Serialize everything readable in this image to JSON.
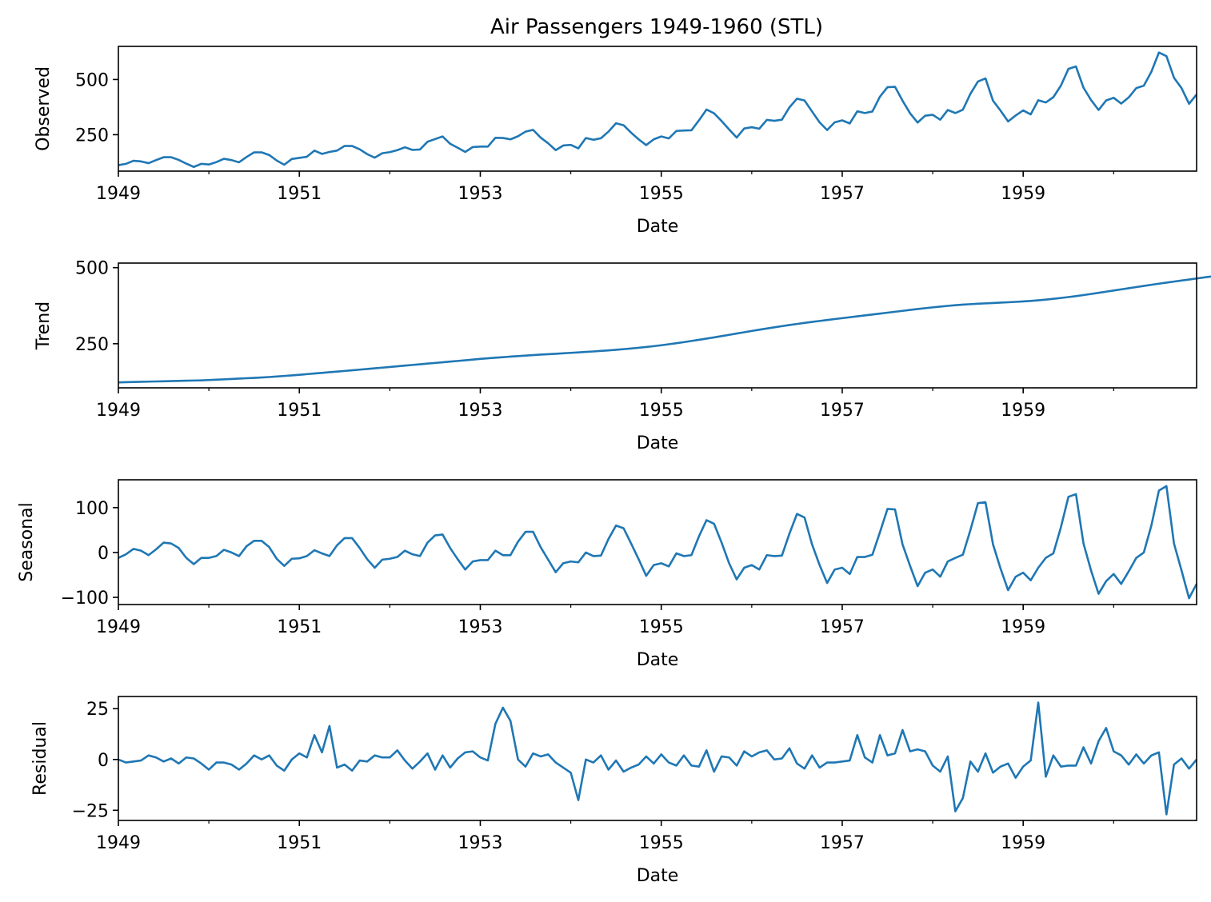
{
  "figure": {
    "title": "Air Passengers 1949-1960 (STL)"
  },
  "style": {
    "line_color": "#1f77b4",
    "axis_color": "#000000",
    "background": "#ffffff"
  },
  "chart_data": [
    {
      "type": "line",
      "ylabel": "Observed",
      "xlabel": "Date",
      "xlim": [
        "1949-01",
        "1960-12"
      ],
      "ylim": [
        85,
        650
      ],
      "yticks": [
        250,
        500
      ],
      "xticks": [
        "1949",
        "1951",
        "1953",
        "1955",
        "1957",
        "1959"
      ],
      "series": [
        {
          "values": [
            112,
            118,
            132,
            129,
            121,
            135,
            148,
            148,
            136,
            119,
            104,
            118,
            115,
            126,
            141,
            135,
            125,
            149,
            170,
            170,
            158,
            133,
            114,
            140,
            145,
            150,
            178,
            163,
            172,
            178,
            199,
            199,
            184,
            162,
            146,
            166,
            171,
            180,
            193,
            181,
            183,
            218,
            230,
            242,
            209,
            191,
            172,
            194,
            196,
            196,
            236,
            235,
            229,
            243,
            264,
            272,
            237,
            211,
            180,
            201,
            204,
            188,
            235,
            227,
            234,
            264,
            302,
            293,
            259,
            229,
            203,
            229,
            242,
            233,
            267,
            269,
            270,
            315,
            364,
            347,
            312,
            274,
            237,
            278,
            284,
            277,
            317,
            313,
            318,
            374,
            413,
            405,
            355,
            306,
            271,
            306,
            315,
            301,
            356,
            348,
            355,
            422,
            465,
            467,
            404,
            347,
            305,
            336,
            340,
            318,
            362,
            348,
            363,
            435,
            491,
            505,
            404,
            359,
            310,
            337,
            360,
            342,
            406,
            396,
            420,
            472,
            548,
            559,
            463,
            407,
            362,
            405,
            417,
            391,
            419,
            461,
            472,
            535,
            622,
            606,
            508,
            461,
            390,
            432
          ]
        }
      ]
    },
    {
      "type": "line",
      "ylabel": "Trend",
      "xlabel": "Date",
      "xlim": [
        "1949-01",
        "1960-12"
      ],
      "ylim": [
        105,
        515
      ],
      "yticks": [
        250,
        500
      ],
      "xticks": [
        "1949",
        "1951",
        "1953",
        "1955",
        "1957",
        "1959"
      ],
      "series": [
        {
          "values": [
            123,
            123.6,
            124.2,
            124.8,
            125.4,
            126,
            126.6,
            127.2,
            127.8,
            128.4,
            129,
            129.6,
            130.6,
            131.7,
            132.9,
            134.1,
            135.3,
            136.5,
            137.7,
            138.9,
            140.5,
            142.3,
            144.1,
            145.9,
            147.9,
            150,
            152.1,
            154.2,
            156.3,
            158.4,
            160.5,
            162.6,
            164.8,
            167,
            169.2,
            171.4,
            173.6,
            175.8,
            178,
            180.2,
            182.4,
            184.6,
            186.8,
            189,
            191.2,
            193.4,
            195.6,
            197.8,
            200,
            202,
            204,
            205.8,
            207.6,
            209.4,
            211,
            212.6,
            214.2,
            215.6,
            217,
            218.4,
            220,
            221.5,
            223,
            224.6,
            226.3,
            228.1,
            230,
            232.1,
            234.3,
            236.7,
            239.3,
            242,
            245,
            248.2,
            251.6,
            255.2,
            259,
            262.8,
            266.8,
            270.8,
            275,
            279.2,
            283.5,
            287.7,
            292,
            296,
            300,
            304,
            307.7,
            311.4,
            315,
            318.4,
            321.6,
            324.8,
            328,
            331,
            334,
            337,
            340,
            343,
            346,
            349,
            352,
            355,
            358,
            361,
            364,
            366.8,
            369.5,
            372,
            374.4,
            376.5,
            378.4,
            380,
            381.4,
            382.6,
            383.8,
            385,
            386.2,
            387.5,
            389,
            390.7,
            392.7,
            395,
            397.5,
            400.3,
            403.3,
            406.5,
            409.9,
            413.5,
            417.2,
            421,
            424.8,
            428.6,
            432.4,
            436.2,
            440,
            443.7,
            447.3,
            450.8,
            454.2,
            457.6,
            461,
            464.4,
            467.8,
            471.2,
            474.6,
            478,
            481.4,
            484.8,
            488.2,
            491.6,
            495,
            498.5
          ]
        }
      ]
    },
    {
      "type": "line",
      "ylabel": "Seasonal",
      "xlabel": "Date",
      "xlim": [
        "1949-01",
        "1960-12"
      ],
      "ylim": [
        -116,
        162
      ],
      "yticks": [
        -100,
        0,
        100
      ],
      "xticks": [
        "1949",
        "1951",
        "1953",
        "1955",
        "1957",
        "1959"
      ],
      "series": [
        {
          "values": [
            -12,
            -4,
            8,
            4,
            -6,
            7,
            22,
            20,
            10,
            -12,
            -26,
            -12,
            -12,
            -8,
            6,
            0,
            -8,
            14,
            26,
            26,
            12,
            -14,
            -30,
            -14,
            -13,
            -8,
            5,
            -2,
            -8,
            16,
            32,
            32,
            10,
            -15,
            -34,
            -16,
            -14,
            -10,
            4,
            -4,
            -8,
            22,
            38,
            40,
            10,
            -15,
            -38,
            -20,
            -17,
            -17,
            4,
            -6,
            -6,
            24,
            46,
            46,
            12,
            -16,
            -44,
            -24,
            -20,
            -22,
            0,
            -8,
            -7,
            30,
            60,
            54,
            20,
            -15,
            -52,
            -28,
            -24,
            -31,
            -2,
            -8,
            -6,
            36,
            72,
            64,
            22,
            -24,
            -60,
            -34,
            -28,
            -38,
            -6,
            -8,
            -7,
            42,
            86,
            78,
            18,
            -28,
            -68,
            -38,
            -34,
            -48,
            -10,
            -10,
            -5,
            45,
            97,
            96,
            18,
            -30,
            -75,
            -45,
            -38,
            -54,
            -20,
            -12,
            -5,
            50,
            110,
            112,
            18,
            -36,
            -84,
            -54,
            -45,
            -62,
            -34,
            -12,
            -2,
            56,
            124,
            130,
            20,
            -40,
            -92,
            -64,
            -48,
            -70,
            -42,
            -12,
            0,
            60,
            138,
            148,
            20,
            -40,
            -102,
            -70
          ]
        }
      ]
    },
    {
      "type": "line",
      "ylabel": "Residual",
      "xlabel": "Date",
      "xlim": [
        "1949-01",
        "1960-12"
      ],
      "ylim": [
        -30,
        31
      ],
      "yticks": [
        -25,
        0,
        25
      ],
      "xticks": [
        "1949",
        "1951",
        "1953",
        "1955",
        "1957",
        "1959"
      ],
      "series": [
        {
          "values": [
            0,
            -1.5,
            -1,
            -0.5,
            2,
            1,
            -1,
            0.5,
            -2,
            1,
            0.5,
            -2,
            -5,
            -1.5,
            -1.5,
            -2.5,
            -5,
            -2,
            2,
            0,
            2,
            -3,
            -5.5,
            0,
            3,
            1,
            12,
            3.5,
            16.5,
            -4,
            -2.5,
            -5.5,
            -0.5,
            -1,
            2,
            1,
            1,
            4.5,
            -0.5,
            -4.5,
            -1,
            3,
            -5,
            2,
            -4,
            0.5,
            3.5,
            4,
            1,
            -0.5,
            17.5,
            25.5,
            19,
            0,
            -3.5,
            3,
            1.5,
            2.5,
            -1.5,
            -4,
            -6.5,
            -20,
            0,
            -1.5,
            2,
            -5,
            -0.5,
            -6,
            -4,
            -2.5,
            1.5,
            -2,
            2.5,
            -1.5,
            -3,
            2,
            -3,
            -3.5,
            4.5,
            -6,
            1.5,
            1,
            -3,
            4,
            1.5,
            3.5,
            4.5,
            0,
            0.5,
            5.5,
            -2,
            -4.5,
            2,
            -4,
            -1.5,
            -1.5,
            -1,
            -0.5,
            12,
            1,
            -1.5,
            12,
            2,
            3,
            14.5,
            4,
            5,
            4,
            -3,
            -6,
            1.5,
            -25.5,
            -19,
            -1,
            -6,
            3,
            -6.5,
            -3.5,
            -2,
            -9,
            -3.5,
            -0.5,
            28,
            -8.5,
            2,
            -3.5,
            -3,
            -3,
            6,
            -2,
            9,
            15.5,
            4,
            2,
            -2.5,
            2.5,
            -2,
            2,
            3.5,
            -27,
            -2.5,
            0.5,
            -4.5,
            0
          ]
        }
      ]
    }
  ]
}
